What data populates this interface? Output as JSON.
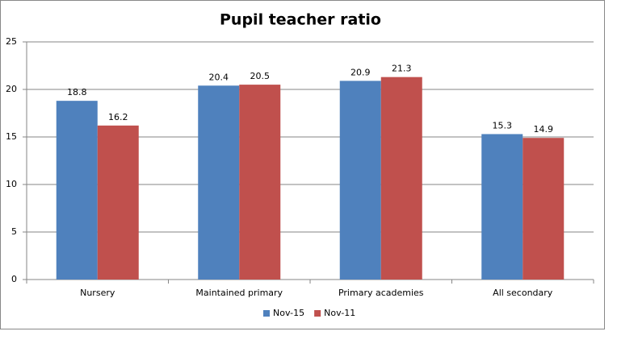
{
  "chart_data": {
    "type": "bar",
    "title": "Pupil teacher ratio",
    "categories": [
      "Nursery",
      "Maintained primary",
      "Primary academies",
      "All secondary"
    ],
    "series": [
      {
        "name": "Nov-15",
        "color": "#4f81bd",
        "values": [
          18.8,
          20.4,
          20.9,
          15.3
        ]
      },
      {
        "name": "Nov-11",
        "color": "#c0504d",
        "values": [
          16.2,
          20.5,
          21.3,
          14.9
        ]
      }
    ],
    "ylim": [
      0,
      25
    ],
    "yticks": [
      0,
      5,
      10,
      15,
      20,
      25
    ],
    "grid": true,
    "legend": "bottom"
  }
}
